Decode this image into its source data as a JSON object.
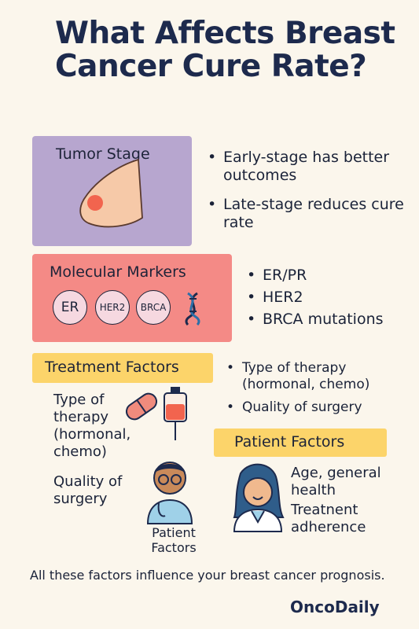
{
  "title": "What Affects Breast Cancer Cure Rate?",
  "tumor_stage": {
    "label": "Tumor Stage",
    "bullets": [
      "Early-stage has better outcomes",
      "Late-stage reduces cure rate"
    ]
  },
  "molecular_markers": {
    "label": "Molecular Markers",
    "chips": [
      "ER",
      "HER2",
      "BRCA"
    ],
    "bullets": [
      "ER/PR",
      "HER2",
      "BRCA mutations"
    ]
  },
  "treatment_factors": {
    "label": "Treatment Factors",
    "bullets": [
      "Type of therapy (hormonal, chemo)",
      "Quality of surgery"
    ],
    "left_text_therapy": "Type of therapy (hormonal, chemo)",
    "left_text_surgery": "Quality of surgery",
    "doctor_caption": "Patient Factors"
  },
  "patient_factors": {
    "label": "Patient Factors",
    "items": [
      "Age, general health",
      "Treatnent adherence"
    ]
  },
  "footer": "All these factors influence your breast cancer prognosis.",
  "brand": "OncoDaily",
  "colors": {
    "background": "#fbf6ec",
    "tumor_card": "#b7a6cf",
    "markers_card": "#f48a86",
    "band": "#fcd46a",
    "title": "#1d2a4d"
  }
}
